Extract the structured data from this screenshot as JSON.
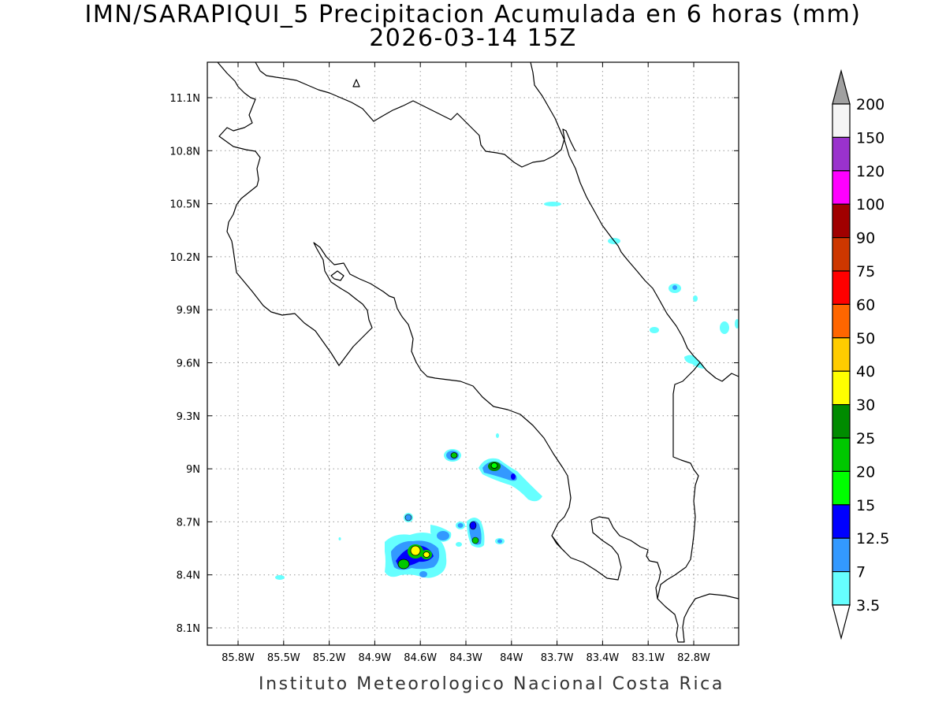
{
  "title": {
    "line1": "IMN/SARAPIQUI_5 Precipitacion Acumulada en 6 horas (mm)",
    "line2": "2026-03-14 15Z"
  },
  "credit": "Instituto Meteorologico Nacional Costa Rica",
  "map": {
    "lon_labels": [
      "85.8W",
      "85.5W",
      "85.2W",
      "84.9W",
      "84.6W",
      "84.3W",
      "84W",
      "83.7W",
      "83.4W",
      "83.1W",
      "82.8W"
    ],
    "lat_labels": [
      "11.1N",
      "10.8N",
      "10.5N",
      "10.2N",
      "9.9N",
      "9.6N",
      "9.3N",
      "9N",
      "8.7N",
      "8.4N",
      "8.1N"
    ]
  },
  "colorbar": {
    "labels": [
      "200",
      "150",
      "120",
      "100",
      "90",
      "75",
      "60",
      "50",
      "40",
      "30",
      "25",
      "20",
      "15",
      "12.5",
      "7",
      "3.5"
    ],
    "colors": [
      "#f5f5f5",
      "#9a32cd",
      "#ff00ff",
      "#a00000",
      "#cd3700",
      "#ff0000",
      "#ff6600",
      "#ffcc00",
      "#ffff00",
      "#008b00",
      "#00c800",
      "#00ff00",
      "#0000ff",
      "#3399ff",
      "#66ffff"
    ],
    "over_color": "#a0a0a0",
    "under_color": "#ffffff"
  }
}
